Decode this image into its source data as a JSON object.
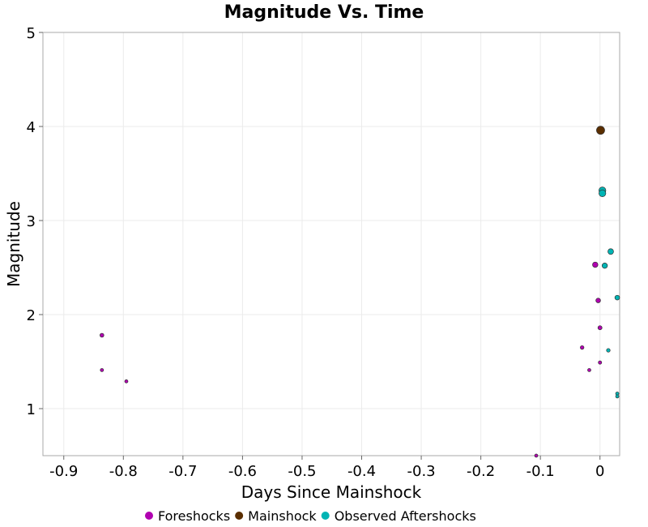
{
  "chart_data": {
    "type": "scatter",
    "title": "Magnitude Vs. Time",
    "xlabel": "Days Since Mainshock",
    "ylabel": "Magnitude",
    "xlim": [
      -0.935,
      0.033
    ],
    "ylim": [
      0.5,
      5
    ],
    "xticks": [
      "-0.9",
      "-0.8",
      "-0.7",
      "-0.6",
      "-0.5",
      "-0.4",
      "-0.3",
      "-0.2",
      "-0.1",
      "0"
    ],
    "xtick_values": [
      -0.9,
      -0.8,
      -0.7,
      -0.6,
      -0.5,
      -0.4,
      -0.3,
      -0.2,
      -0.1,
      0
    ],
    "yticks": [
      "1",
      "2",
      "3",
      "4",
      "5"
    ],
    "ytick_values": [
      1,
      2,
      3,
      4,
      5
    ],
    "grid": true,
    "legend_position": "bottom",
    "series": [
      {
        "name": "Foreshocks",
        "color": "#b000b0",
        "points": [
          {
            "x": -0.836,
            "y": 1.78
          },
          {
            "x": -0.836,
            "y": 1.41
          },
          {
            "x": -0.795,
            "y": 1.29
          },
          {
            "x": -0.107,
            "y": 0.5
          },
          {
            "x": -0.03,
            "y": 1.65
          },
          {
            "x": -0.018,
            "y": 1.41
          },
          {
            "x": -0.008,
            "y": 2.53
          },
          {
            "x": -0.003,
            "y": 2.15
          },
          {
            "x": 0.0,
            "y": 1.86
          },
          {
            "x": 0.0,
            "y": 1.49
          }
        ]
      },
      {
        "name": "Mainshock",
        "color": "#5a2e00",
        "points": [
          {
            "x": 0.001,
            "y": 3.96
          }
        ]
      },
      {
        "name": "Observed Aftershocks",
        "color": "#00b4b4",
        "points": [
          {
            "x": 0.004,
            "y": 3.32
          },
          {
            "x": 0.004,
            "y": 3.29
          },
          {
            "x": 0.018,
            "y": 2.67
          },
          {
            "x": 0.008,
            "y": 2.52
          },
          {
            "x": 0.029,
            "y": 2.18
          },
          {
            "x": 0.014,
            "y": 1.62
          },
          {
            "x": 0.029,
            "y": 1.16
          },
          {
            "x": 0.029,
            "y": 1.13
          }
        ]
      }
    ]
  }
}
